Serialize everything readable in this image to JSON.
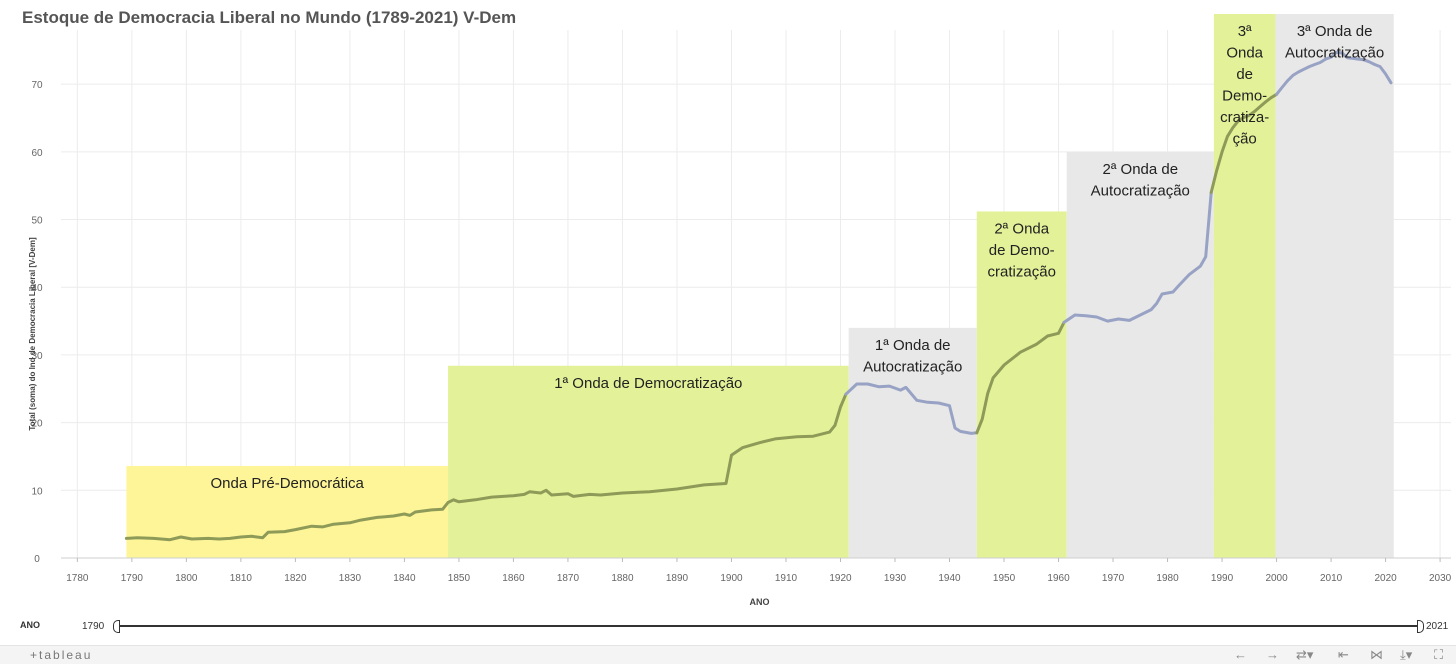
{
  "title": "Estoque de Democracia Liberal no Mundo (1789-2021) V-Dem",
  "chart_data": {
    "type": "line",
    "title": "Estoque de Democracia Liberal no Mundo (1789-2021) V-Dem",
    "xlabel": "ANO",
    "ylabel": "Total (soma) do Ind de Democracia Liberal [V-Dem]",
    "xlim": [
      1777,
      2032
    ],
    "ylim": [
      0,
      78
    ],
    "x_ticks": [
      1780,
      1790,
      1800,
      1810,
      1820,
      1830,
      1840,
      1850,
      1860,
      1870,
      1880,
      1890,
      1900,
      1910,
      1920,
      1930,
      1940,
      1950,
      1960,
      1970,
      1980,
      1990,
      2000,
      2010,
      2020,
      2030
    ],
    "y_ticks": [
      0,
      10,
      20,
      30,
      40,
      50,
      60,
      70
    ],
    "grid": true,
    "line_color": "#8e9a58",
    "line_color_autocracy": "#98a2c4",
    "series": [
      {
        "points": [
          [
            1789,
            2.9
          ],
          [
            1791,
            3.0
          ],
          [
            1794,
            2.9
          ],
          [
            1797,
            2.7
          ],
          [
            1799,
            3.1
          ],
          [
            1801,
            2.8
          ],
          [
            1804,
            2.9
          ],
          [
            1806,
            2.8
          ],
          [
            1808,
            2.9
          ],
          [
            1810,
            3.1
          ],
          [
            1812,
            3.2
          ],
          [
            1814,
            3.0
          ],
          [
            1815,
            3.8
          ],
          [
            1818,
            3.9
          ],
          [
            1820,
            4.2
          ],
          [
            1823,
            4.7
          ],
          [
            1825,
            4.6
          ],
          [
            1827,
            5.0
          ],
          [
            1830,
            5.2
          ],
          [
            1832,
            5.6
          ],
          [
            1835,
            6.0
          ],
          [
            1838,
            6.2
          ],
          [
            1840,
            6.5
          ],
          [
            1841,
            6.3
          ],
          [
            1842,
            6.8
          ],
          [
            1845,
            7.1
          ],
          [
            1847,
            7.2
          ],
          [
            1848,
            8.2
          ],
          [
            1849,
            8.6
          ],
          [
            1850,
            8.3
          ],
          [
            1853,
            8.6
          ],
          [
            1856,
            9.0
          ],
          [
            1860,
            9.2
          ],
          [
            1862,
            9.4
          ],
          [
            1863,
            9.8
          ],
          [
            1865,
            9.6
          ],
          [
            1866,
            10.0
          ],
          [
            1867,
            9.3
          ],
          [
            1870,
            9.5
          ],
          [
            1871,
            9.1
          ],
          [
            1874,
            9.4
          ],
          [
            1876,
            9.3
          ],
          [
            1880,
            9.6
          ],
          [
            1885,
            9.8
          ],
          [
            1890,
            10.2
          ],
          [
            1895,
            10.8
          ],
          [
            1899,
            11.0
          ],
          [
            1900,
            15.2
          ],
          [
            1902,
            16.3
          ],
          [
            1905,
            17.0
          ],
          [
            1908,
            17.6
          ],
          [
            1912,
            17.9
          ],
          [
            1915,
            18.0
          ],
          [
            1918,
            18.6
          ],
          [
            1919,
            19.6
          ],
          [
            1920,
            22.3
          ],
          [
            1921,
            24.2
          ],
          [
            1923,
            25.7
          ],
          [
            1925,
            25.7
          ],
          [
            1927,
            25.3
          ],
          [
            1929,
            25.4
          ],
          [
            1931,
            24.8
          ],
          [
            1932,
            25.2
          ],
          [
            1934,
            23.3
          ],
          [
            1936,
            23.0
          ],
          [
            1938,
            22.9
          ],
          [
            1940,
            22.5
          ],
          [
            1941,
            19.2
          ],
          [
            1942,
            18.7
          ],
          [
            1944,
            18.4
          ],
          [
            1945,
            18.5
          ],
          [
            1946,
            20.5
          ],
          [
            1947,
            24.3
          ],
          [
            1948,
            26.6
          ],
          [
            1950,
            28.5
          ],
          [
            1953,
            30.4
          ],
          [
            1956,
            31.6
          ],
          [
            1958,
            32.8
          ],
          [
            1960,
            33.2
          ],
          [
            1961,
            34.8
          ],
          [
            1963,
            35.9
          ],
          [
            1965,
            35.8
          ],
          [
            1967,
            35.6
          ],
          [
            1969,
            35.0
          ],
          [
            1971,
            35.3
          ],
          [
            1973,
            35.1
          ],
          [
            1975,
            35.9
          ],
          [
            1977,
            36.7
          ],
          [
            1978,
            37.6
          ],
          [
            1979,
            39.0
          ],
          [
            1981,
            39.3
          ],
          [
            1982,
            40.2
          ],
          [
            1984,
            41.9
          ],
          [
            1986,
            43.1
          ],
          [
            1987,
            44.5
          ],
          [
            1988,
            54.0
          ],
          [
            1989,
            57.2
          ],
          [
            1990,
            60.0
          ],
          [
            1991,
            62.3
          ],
          [
            1992,
            63.6
          ],
          [
            1993,
            64.6
          ],
          [
            1994,
            65.1
          ],
          [
            1995,
            65.4
          ],
          [
            1996,
            66.0
          ],
          [
            1997,
            66.7
          ],
          [
            1998,
            67.4
          ],
          [
            1999,
            68.0
          ],
          [
            2000,
            68.5
          ],
          [
            2001,
            69.5
          ],
          [
            2002,
            70.5
          ],
          [
            2003,
            71.3
          ],
          [
            2004,
            71.8
          ],
          [
            2005,
            72.2
          ],
          [
            2006,
            72.6
          ],
          [
            2007,
            72.9
          ],
          [
            2008,
            73.2
          ],
          [
            2009,
            73.7
          ],
          [
            2010,
            74.0
          ],
          [
            2011,
            74.7
          ],
          [
            2012,
            74.6
          ],
          [
            2013,
            73.9
          ],
          [
            2014,
            73.8
          ],
          [
            2015,
            73.7
          ],
          [
            2016,
            73.6
          ],
          [
            2017,
            73.3
          ],
          [
            2018,
            72.9
          ],
          [
            2019,
            72.6
          ],
          [
            2020,
            71.5
          ],
          [
            2021,
            70.2
          ]
        ]
      }
    ],
    "bands": [
      {
        "label": "Onda Pré-Democrática",
        "start": 1789,
        "end": 1848,
        "height": 13.6,
        "kind": "pre",
        "label_y": 10.5
      },
      {
        "label": "1ª Onda de Democratização",
        "start": 1848,
        "end": 1921.5,
        "height": 28.4,
        "kind": "democracy",
        "label_y": 25.2
      },
      {
        "label": "1ª Onda de Autocratização",
        "start": 1921.5,
        "end": 1945,
        "height": 34.0,
        "kind": "autocracy",
        "label_y": 30.0
      },
      {
        "label": "2ª Onda de Democratização",
        "start": 1945,
        "end": 1961.5,
        "height": 51.2,
        "kind": "democracy",
        "label_y": 47.6
      },
      {
        "label": "2ª Onda de Autocratização",
        "start": 1961.5,
        "end": 1988.5,
        "height": 60.0,
        "kind": "autocracy",
        "label_y": 56.8
      },
      {
        "label": "3ª Onda de Democratização",
        "start": 1988.5,
        "end": 1999.8,
        "height": 81.5,
        "kind": "democracy",
        "label_y": 78.5
      },
      {
        "label": "3ª Onda de Autocratização",
        "start": 1999.8,
        "end": 2021.5,
        "height": 81.5,
        "kind": "autocracy",
        "label_y": 78.5
      }
    ],
    "band_colors": {
      "pre": "#fdf598",
      "democracy": "#e3f299",
      "autocracy": "#e8e8e8"
    }
  },
  "band_label_lines": [
    [
      "Onda Pré-Democrática"
    ],
    [
      "1ª Onda de Democratização"
    ],
    [
      "1ª Onda de",
      "Autocratização"
    ],
    [
      "2ª Onda",
      "de Demo-",
      "cratização"
    ],
    [
      "2ª Onda de",
      "Autocratização"
    ],
    [
      "3ª",
      "Onda",
      "de",
      "Demo-",
      "cratiza-",
      "ção"
    ],
    [
      "3ª Onda de",
      "Autocratização"
    ]
  ],
  "filter": {
    "label": "ANO",
    "min": "1790",
    "max": "2021"
  },
  "footer": {
    "logo": "+tableau",
    "icons": [
      "undo-icon",
      "redo-icon",
      "revert-icon",
      "reset-icon",
      "share-icon",
      "download-icon",
      "fullscreen-icon"
    ]
  }
}
